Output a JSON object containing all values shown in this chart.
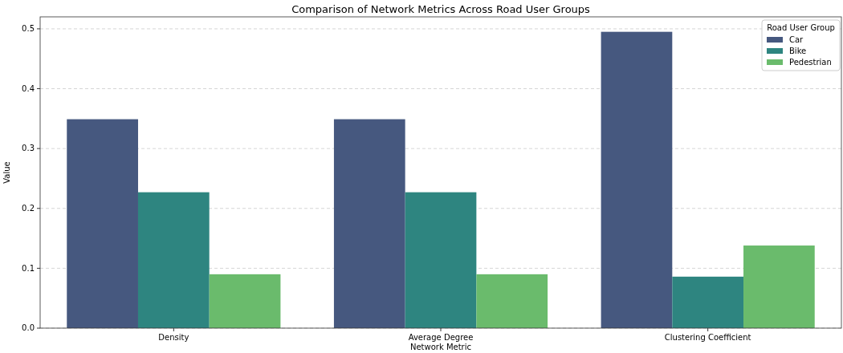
{
  "chart_data": {
    "type": "bar",
    "title": "Comparison of Network Metrics Across Road User Groups",
    "xlabel": "Network Metric",
    "ylabel": "Value",
    "legend_title": "Road User Group",
    "categories": [
      "Density",
      "Average Degree",
      "Clustering Coefficient"
    ],
    "series": [
      {
        "name": "Car",
        "color": "#46587f",
        "values": [
          0.349,
          0.349,
          0.495
        ]
      },
      {
        "name": "Bike",
        "color": "#2e8580",
        "values": [
          0.227,
          0.227,
          0.086
        ]
      },
      {
        "name": "Pedestrian",
        "color": "#6abb6c",
        "values": [
          0.09,
          0.09,
          0.138
        ]
      }
    ],
    "ylim": [
      0,
      0.52
    ],
    "yticks": [
      {
        "value": 0,
        "label": "0.0"
      },
      0.1,
      0.2,
      0.3,
      0.4,
      0.5
    ],
    "grid": "y",
    "legend": "top right"
  }
}
